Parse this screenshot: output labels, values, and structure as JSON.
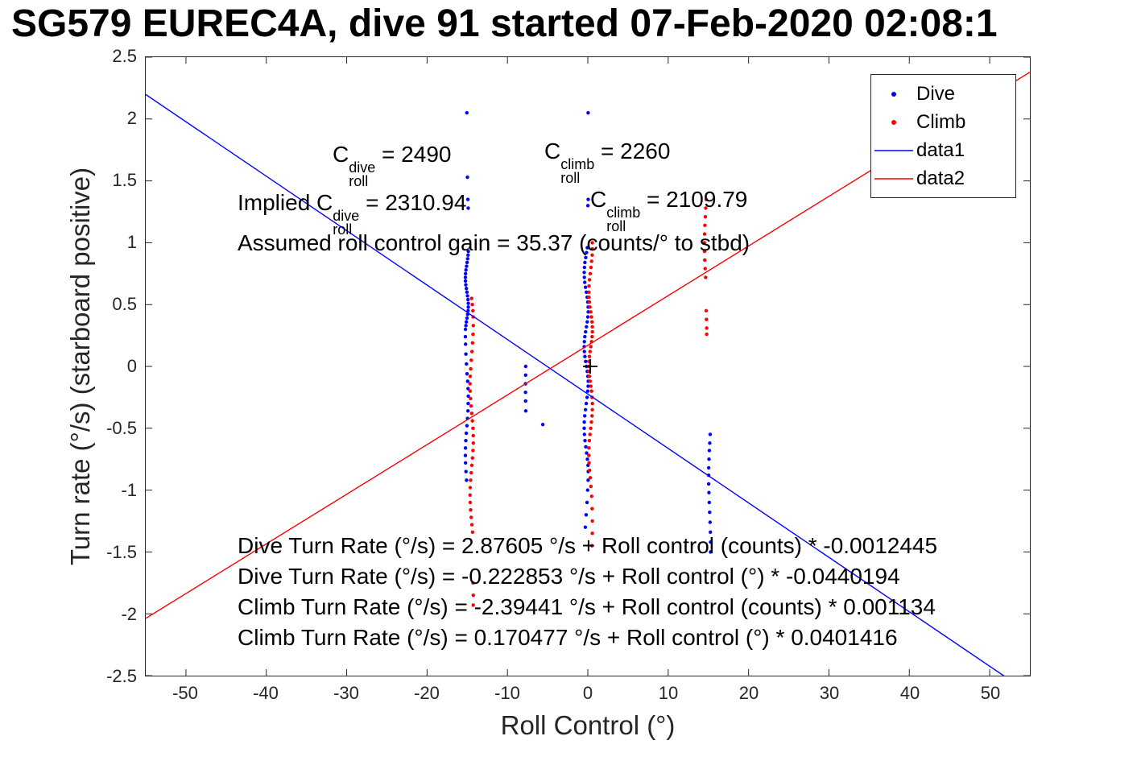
{
  "chart_data": {
    "type": "scatter",
    "title": "SG579 EUREC4A, dive 91 started 07-Feb-2020 02:08:1",
    "xlabel": "Roll Control (°)",
    "ylabel": "Turn rate (°/s) (starboard positive)",
    "xlim": [
      -55,
      55
    ],
    "ylim": [
      -2.5,
      2.5
    ],
    "xticks": [
      -50,
      -40,
      -30,
      -20,
      -10,
      0,
      10,
      20,
      30,
      40,
      50
    ],
    "yticks": [
      -2.5,
      -2,
      -1.5,
      -1,
      -0.5,
      0,
      0.5,
      1,
      1.5,
      2,
      2.5
    ],
    "grid": false,
    "colors": {
      "dive": "#0000ff",
      "climb": "#ff0000",
      "axes": "#262626"
    },
    "legend": {
      "position": "top-right",
      "entries": [
        {
          "label": "Dive",
          "type": "marker",
          "color": "#0000ff"
        },
        {
          "label": "Climb",
          "type": "marker",
          "color": "#ff0000"
        },
        {
          "label": "data1",
          "type": "line",
          "color": "#0000ff"
        },
        {
          "label": "data2",
          "type": "line",
          "color": "#ff0000"
        }
      ]
    },
    "scatter_series": [
      {
        "name": "Dive",
        "color": "#0000ff",
        "clusters": [
          {
            "x": -15.05,
            "spread": 0.18,
            "ys": [
              2.05,
              1.53,
              1.35,
              1.28,
              0.93,
              0.9,
              0.87,
              0.84,
              0.81,
              0.78,
              0.75,
              0.72,
              0.69,
              0.66,
              0.63,
              0.6,
              0.57,
              0.54,
              0.51,
              0.48,
              0.45,
              0.42,
              0.39,
              0.36,
              0.33,
              0.3,
              0.24,
              0.18,
              0.1,
              0.02,
              -0.06,
              -0.12,
              -0.18,
              -0.24,
              -0.3,
              -0.36,
              -0.42,
              -0.48,
              -0.54,
              -0.6,
              -0.66,
              -0.72,
              -0.78,
              -0.85,
              -0.92
            ]
          },
          {
            "x": -0.2,
            "spread": 0.25,
            "ys": [
              2.05,
              1.35,
              1.3,
              0.96,
              0.92,
              0.88,
              0.84,
              0.8,
              0.76,
              0.72,
              0.68,
              0.64,
              0.6,
              0.56,
              0.52,
              0.48,
              0.44,
              0.4,
              0.36,
              0.32,
              0.28,
              0.24,
              0.2,
              0.16,
              0.12,
              0.08,
              0.04,
              0.0,
              -0.04,
              -0.08,
              -0.12,
              -0.16,
              -0.2,
              -0.25,
              -0.3,
              -0.35,
              -0.4,
              -0.45,
              -0.5,
              -0.55,
              -0.6,
              -0.65,
              -0.7,
              -0.75,
              -0.8,
              -0.85,
              -0.92,
              -1.0,
              -1.1,
              -1.2,
              -1.3
            ]
          },
          {
            "x": 15.15,
            "spread": 0.12,
            "ys": [
              -0.55,
              -0.62,
              -0.68,
              -0.75,
              -0.82,
              -0.88,
              -0.95,
              -1.02,
              -1.1,
              -1.18,
              -1.26,
              -1.34,
              -1.42,
              -1.5
            ]
          },
          {
            "x": -7.7,
            "spread": 0.05,
            "ys": [
              0.0,
              -0.07,
              -0.14,
              -0.21,
              -0.28,
              -0.36
            ]
          },
          {
            "x": -5.6,
            "spread": 0,
            "ys": [
              -0.47
            ]
          }
        ]
      },
      {
        "name": "Climb",
        "color": "#ff0000",
        "clusters": [
          {
            "x": -14.45,
            "spread": 0.2,
            "ys": [
              0.55,
              0.5,
              0.45,
              0.4,
              0.33,
              0.26,
              0.19,
              0.12,
              0.05,
              -0.02,
              -0.08,
              -0.14,
              -0.2,
              -0.26,
              -0.32,
              -0.38,
              -0.44,
              -0.5,
              -0.56,
              -0.62,
              -0.68,
              -0.74,
              -0.8,
              -0.86,
              -0.92,
              -0.98,
              -1.04,
              -1.1,
              -1.16,
              -1.22,
              -1.28,
              -1.34,
              -1.75,
              -1.85,
              -1.93
            ]
          },
          {
            "x": 0.35,
            "spread": 0.22,
            "ys": [
              1.0,
              0.95,
              0.9,
              0.85,
              0.8,
              0.75,
              0.7,
              0.65,
              0.6,
              0.56,
              0.52,
              0.48,
              0.44,
              0.4,
              0.36,
              0.32,
              0.28,
              0.24,
              0.2,
              0.16,
              0.12,
              0.08,
              0.04,
              0.0,
              -0.04,
              -0.08,
              -0.12,
              -0.16,
              -0.2,
              -0.25,
              -0.3,
              -0.35,
              -0.4,
              -0.45,
              -0.5,
              -0.55,
              -0.6,
              -0.66,
              -0.72,
              -0.78,
              -0.84,
              -0.9,
              -0.97,
              -1.05,
              -1.15,
              -1.25,
              -1.35,
              -1.45
            ]
          },
          {
            "x": 14.65,
            "spread": 0.14,
            "ys": [
              1.35,
              1.28,
              1.21,
              1.14,
              1.07,
              1.0,
              0.93,
              0.86,
              0.79,
              0.72,
              0.45,
              0.38,
              0.31,
              0.26
            ]
          }
        ]
      }
    ],
    "line_series": [
      {
        "name": "data1",
        "color": "#0000ff",
        "intercept": -0.222853,
        "slope": -0.0440194
      },
      {
        "name": "data2",
        "color": "#ff0000",
        "intercept": 0.170477,
        "slope": 0.0401416
      }
    ],
    "ref_marker": {
      "x": 0.3,
      "y": 0,
      "symbol": "+",
      "color": "#000000"
    },
    "annotations": {
      "c_dive": {
        "pre": "C",
        "sup": "dive",
        "sub": "roll",
        "post": " = 2490"
      },
      "c_climb": {
        "pre": "C",
        "sup": "climb",
        "sub": "roll",
        "post": " = 2260"
      },
      "implied_dive": {
        "pre": "Implied C",
        "sup": "dive",
        "sub": "roll",
        "post": " = 2310.94"
      },
      "implied_climb": {
        "pre": "C",
        "sup": "climb",
        "sub": "roll",
        "post": " = 2109.79"
      },
      "gain": "Assumed roll control gain = 35.37 (counts/° to stbd)",
      "eq1": "Dive Turn Rate (°/s) = 2.87605 °/s + Roll control (counts) * -0.0012445",
      "eq2": "Dive Turn Rate (°/s) = -0.222853 °/s + Roll control (°) * -0.0440194",
      "eq3": "Climb Turn Rate (°/s) = -2.39441 °/s + Roll control (counts) * 0.001134",
      "eq4": "Climb Turn Rate (°/s) = 0.170477 °/s + Roll control (°) * 0.0401416"
    }
  }
}
